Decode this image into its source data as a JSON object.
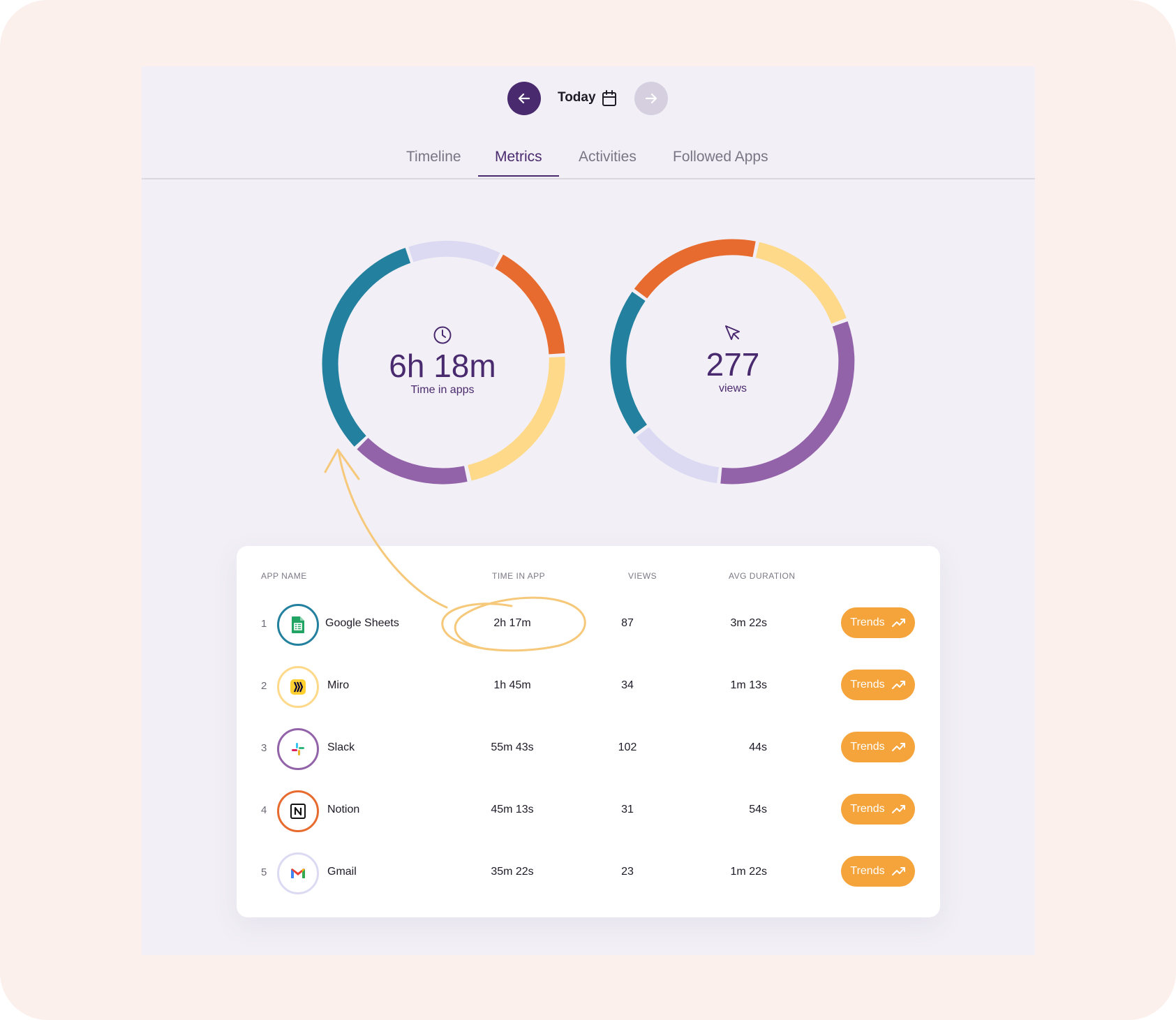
{
  "header": {
    "date_label": "Today",
    "prev_icon": "arrow-left-icon",
    "next_icon": "arrow-right-icon",
    "calendar_icon": "calendar-icon"
  },
  "tabs": [
    {
      "label": "Timeline",
      "active": false
    },
    {
      "label": "Metrics",
      "active": true
    },
    {
      "label": "Activities",
      "active": false
    },
    {
      "label": "Followed Apps",
      "active": false
    }
  ],
  "metrics": {
    "time": {
      "value": "6h 18m",
      "label": "Time in apps",
      "icon": "clock-icon"
    },
    "views": {
      "value": "277",
      "label": "views",
      "icon": "cursor-icon"
    }
  },
  "colors": {
    "teal": "#23809e",
    "lavender": "#dcdaf2",
    "orange": "#e76b2e",
    "yellow": "#fed98a",
    "purple": "#9363a9",
    "accent": "#4a2a6e",
    "trends": "#f4a43a"
  },
  "table": {
    "headers": {
      "app": "APP NAME",
      "time": "TIME IN APP",
      "views": "VIEWS",
      "avg": "AVG DURATION"
    },
    "trends_label": "Trends",
    "rows": [
      {
        "rank": "1",
        "name": "Google Sheets",
        "time": "2h 17m",
        "views": "87",
        "avg": "3m 22s",
        "icon": "google-sheets-icon"
      },
      {
        "rank": "2",
        "name": "Miro",
        "time": "1h 45m",
        "views": "34",
        "avg": "1m 13s",
        "icon": "miro-icon"
      },
      {
        "rank": "3",
        "name": "Slack",
        "time": "55m 43s",
        "views": "102",
        "avg": "44s",
        "icon": "slack-icon"
      },
      {
        "rank": "4",
        "name": "Notion",
        "time": "45m 13s",
        "views": "31",
        "avg": "54s",
        "icon": "notion-icon"
      },
      {
        "rank": "5",
        "name": "Gmail",
        "time": "35m 22s",
        "views": "23",
        "avg": "1m 22s",
        "icon": "gmail-icon"
      }
    ]
  }
}
